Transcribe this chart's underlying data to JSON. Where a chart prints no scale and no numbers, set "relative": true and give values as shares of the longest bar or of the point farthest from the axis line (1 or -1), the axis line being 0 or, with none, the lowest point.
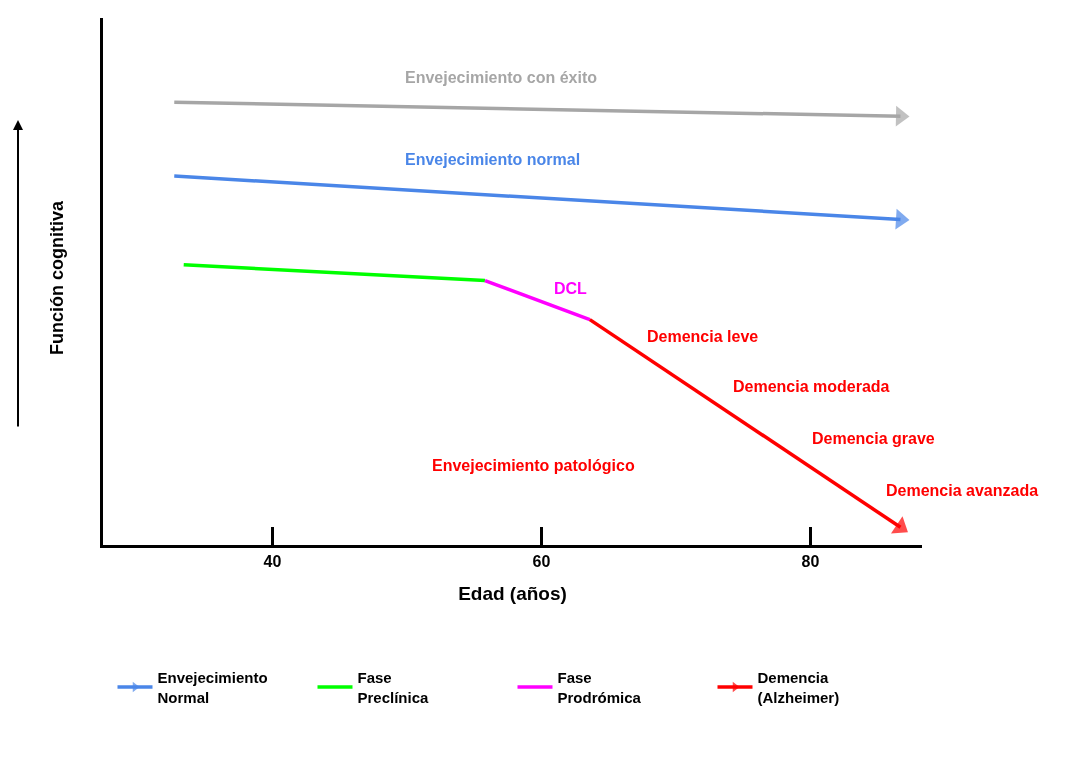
{
  "chart_data": {
    "type": "line",
    "relative": true,
    "xlabel": "Edad (años)",
    "ylabel": "Función cognitiva",
    "xlim": [
      27.4,
      88.3
    ],
    "xticks": [
      40,
      60,
      80
    ],
    "legend": "bottom",
    "series": [
      {
        "color": "#a6a6a6",
        "x": [
          32.7,
          86.7
        ],
        "values": [
          1,
          0.968
        ]
      },
      {
        "name": "Envejecimiento\nNormal",
        "color": "#4a86e8",
        "x": [
          32.7,
          86.7
        ],
        "values": [
          0.833,
          0.735
        ]
      },
      {
        "name": "Fase\nPreclínica",
        "color": "#00ff00",
        "x": [
          33.4,
          55.8
        ],
        "values": [
          0.633,
          0.597
        ]
      },
      {
        "name": "Fase\nProdrómica",
        "color": "#ff00ff",
        "x": [
          55.8,
          63.6
        ],
        "values": [
          0.597,
          0.509
        ]
      },
      {
        "name": "Demencia\n(Alzheimer)",
        "color": "#ff0000",
        "x": [
          63.6,
          86.7
        ],
        "values": [
          0.509,
          0.04
        ]
      }
    ],
    "annotations": [
      "Envejecimiento con éxito",
      "Envejecimiento normal",
      "DCL",
      "Demencia leve",
      "Demencia moderada",
      "Demencia grave",
      "Demencia avanzada",
      "Envejecimiento patológico"
    ]
  }
}
